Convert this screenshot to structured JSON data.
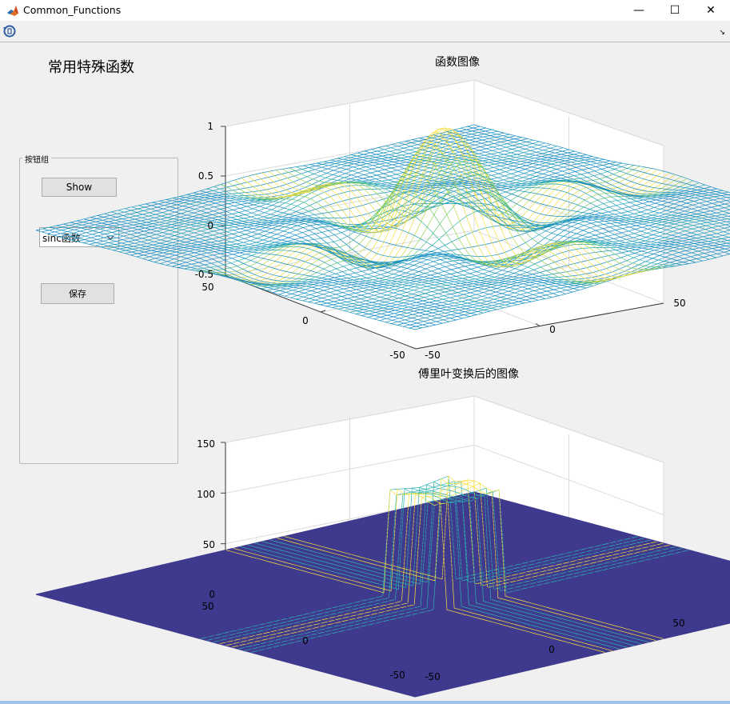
{
  "window": {
    "title": "Common_Functions",
    "minimize": "—",
    "maximize": "☐",
    "close": "✕"
  },
  "app": {
    "title": "常用特殊函数"
  },
  "button_group": {
    "label": "按钮组",
    "show_label": "Show",
    "function_select": {
      "value": "sinc函数",
      "options": [
        "sinc函数"
      ]
    },
    "save_label": "保存"
  },
  "icons": {
    "app": "matlab-icon",
    "toolbar": "restore-view-icon",
    "dock": "dock-arrow-icon"
  },
  "colors": {
    "accent_blue": "#0a6fd0",
    "surface_yellow": "#fadf3a",
    "surface_teal": "#29b3b1",
    "floor_purple": "#3f3a8e"
  },
  "chart_data": [
    {
      "type": "surface",
      "title": "函数图像",
      "x_ticks": [
        "-50",
        "0",
        "50"
      ],
      "y_ticks": [
        "-50",
        "0",
        "50"
      ],
      "z_ticks": [
        "-0.5",
        "0",
        "0.5",
        "1"
      ],
      "xlim": [
        -64,
        64
      ],
      "ylim": [
        -64,
        64
      ],
      "zlim": [
        -0.5,
        1
      ],
      "peak": 1,
      "grid": true
    },
    {
      "type": "surface",
      "title": "傅里叶变换后的图像",
      "x_ticks": [
        "-50",
        "0",
        "50"
      ],
      "y_ticks": [
        "-50",
        "0",
        "50"
      ],
      "z_ticks": [
        "0",
        "50",
        "100",
        "150"
      ],
      "xlim": [
        -64,
        64
      ],
      "ylim": [
        -64,
        64
      ],
      "zlim": [
        0,
        150
      ],
      "peak": 113,
      "plateau": 100,
      "grid": true
    }
  ]
}
